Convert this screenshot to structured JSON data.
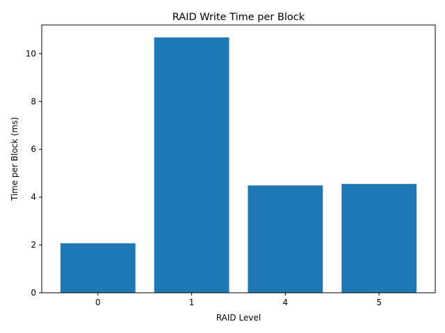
{
  "chart_data": {
    "type": "bar",
    "title": "RAID Write Time per Block",
    "xlabel": "RAID Level",
    "ylabel": "Time per Block (ms)",
    "categories": [
      "0",
      "1",
      "4",
      "5"
    ],
    "values": [
      2.07,
      10.68,
      4.49,
      4.55
    ],
    "ylim": [
      0,
      11.2
    ],
    "yticks": [
      0,
      2,
      4,
      6,
      8,
      10
    ],
    "grid": false,
    "bar_color": "#1f77b4"
  }
}
